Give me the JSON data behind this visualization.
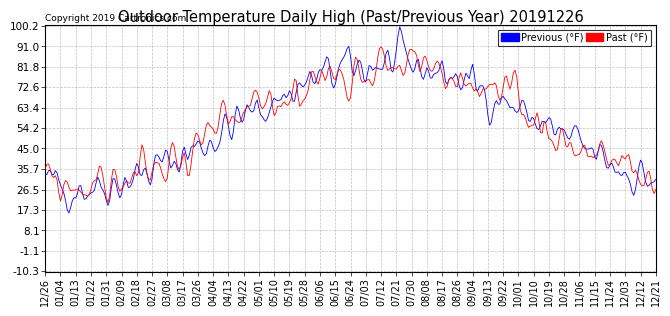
{
  "title": "Outdoor Temperature Daily High (Past/Previous Year) 20191226",
  "copyright": "Copyright 2019 Cartronics.com",
  "ylabel_ticks": [
    100.2,
    91.0,
    81.8,
    72.6,
    63.4,
    54.2,
    45.0,
    35.7,
    26.5,
    17.3,
    8.1,
    -1.1,
    -10.3
  ],
  "legend_previous_label": "Previous (°F)",
  "legend_past_label": "Past (°F)",
  "previous_color": "#0000ff",
  "past_color": "#ff0000",
  "background_color": "#ffffff",
  "plot_bg_color": "#ffffff",
  "grid_color": "#b0b0b0",
  "title_fontsize": 10.5,
  "tick_fontsize": 7.5,
  "copyright_fontsize": 6.5,
  "x_date_labels": [
    "12/26",
    "01/04",
    "01/13",
    "01/22",
    "01/31",
    "02/09",
    "02/18",
    "02/27",
    "03/08",
    "03/17",
    "03/26",
    "04/04",
    "04/13",
    "04/22",
    "05/01",
    "05/10",
    "05/19",
    "05/28",
    "06/06",
    "06/15",
    "06/24",
    "07/03",
    "07/12",
    "07/21",
    "07/30",
    "08/08",
    "08/17",
    "08/26",
    "09/04",
    "09/13",
    "09/22",
    "10/01",
    "10/10",
    "10/19",
    "10/28",
    "11/06",
    "11/15",
    "11/24",
    "12/03",
    "12/12",
    "12/21"
  ]
}
